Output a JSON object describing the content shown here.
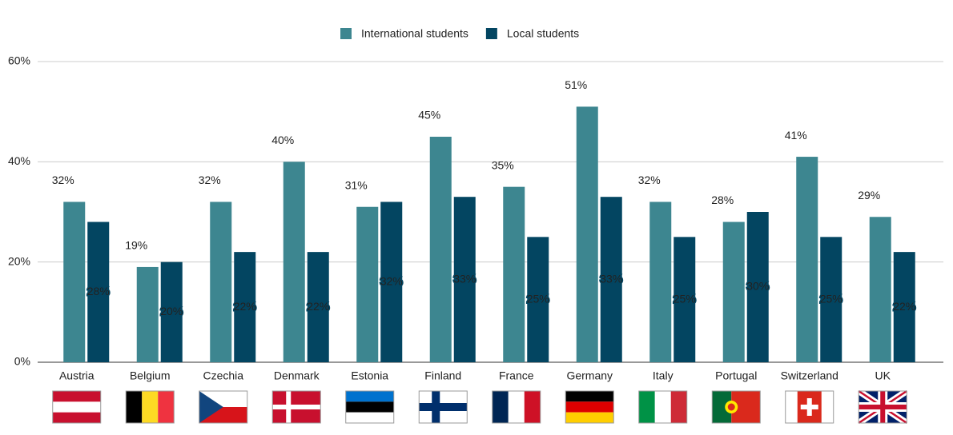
{
  "chart_data": {
    "type": "bar",
    "categories": [
      "Austria",
      "Belgium",
      "Czechia",
      "Denmark",
      "Estonia",
      "Finland",
      "France",
      "Germany",
      "Italy",
      "Portugal",
      "Switzerland",
      "UK"
    ],
    "series": [
      {
        "name": "International students",
        "color": "#3d8690",
        "values": [
          32,
          19,
          32,
          40,
          31,
          45,
          35,
          51,
          32,
          28,
          41,
          29
        ],
        "value_labels": [
          "32%",
          "19%",
          "32%",
          "40%",
          "31%",
          "45%",
          "35%",
          "51%",
          "32%",
          "28%",
          "41%",
          "29%"
        ]
      },
      {
        "name": "Local students",
        "color": "#034561",
        "values": [
          28,
          20,
          22,
          22,
          32,
          33,
          25,
          33,
          25,
          30,
          25,
          22
        ],
        "value_labels": [
          "28%",
          "20%",
          "22%",
          "22%",
          "32%",
          "33%",
          "25%",
          "33%",
          "25%",
          "30%",
          "25%",
          "22%"
        ]
      }
    ],
    "ylim": [
      0,
      60
    ],
    "yticks": [
      {
        "value": 0,
        "label": "0%"
      },
      {
        "value": 20,
        "label": "20%"
      },
      {
        "value": 40,
        "label": "40%"
      },
      {
        "value": 60,
        "label": "60%"
      }
    ],
    "grid": true,
    "legend": "top"
  }
}
